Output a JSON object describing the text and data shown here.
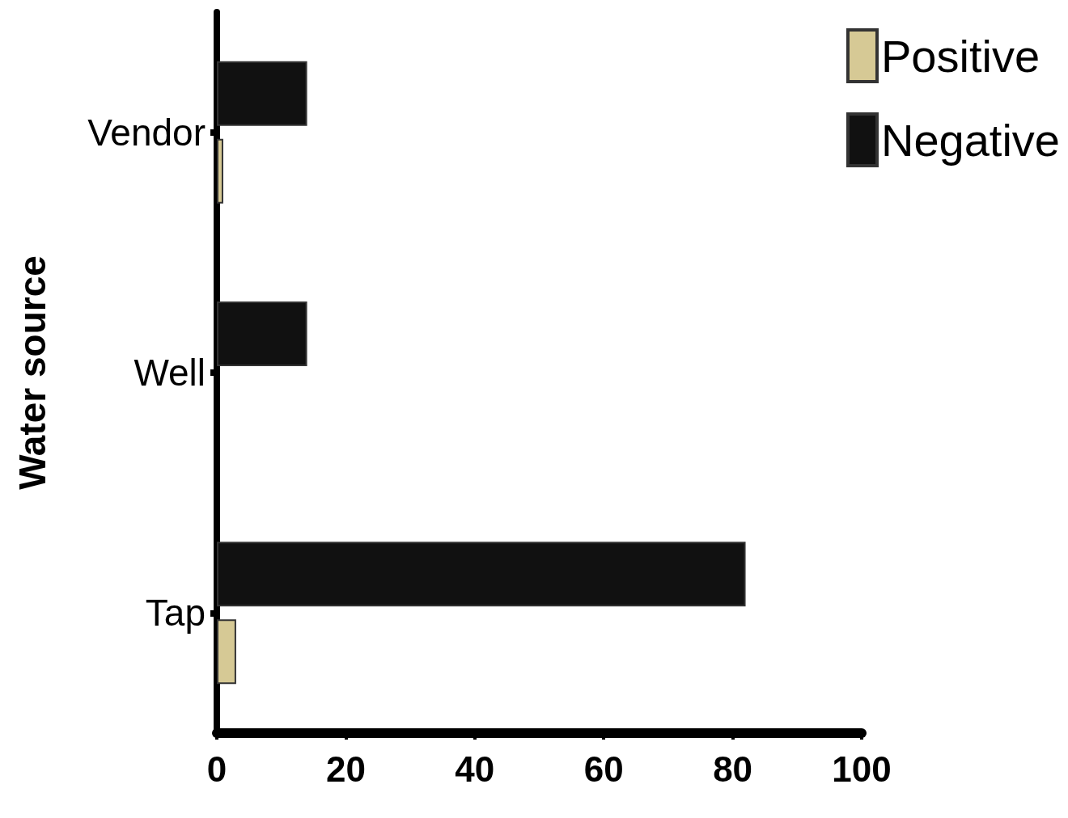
{
  "chart_data": {
    "type": "bar",
    "orientation": "horizontal",
    "ylabel": "Water source",
    "categories": [
      "Vendor",
      "Well",
      "Tap"
    ],
    "series": [
      {
        "name": "Positive",
        "color": "#d6c995",
        "values": [
          1,
          0,
          3
        ]
      },
      {
        "name": "Negative",
        "color": "#111111",
        "values": [
          14,
          14,
          82
        ]
      }
    ],
    "xlim": [
      0,
      100
    ],
    "xticks": [
      0,
      20,
      40,
      60,
      80,
      100
    ],
    "grid": false,
    "legend": "top right"
  }
}
